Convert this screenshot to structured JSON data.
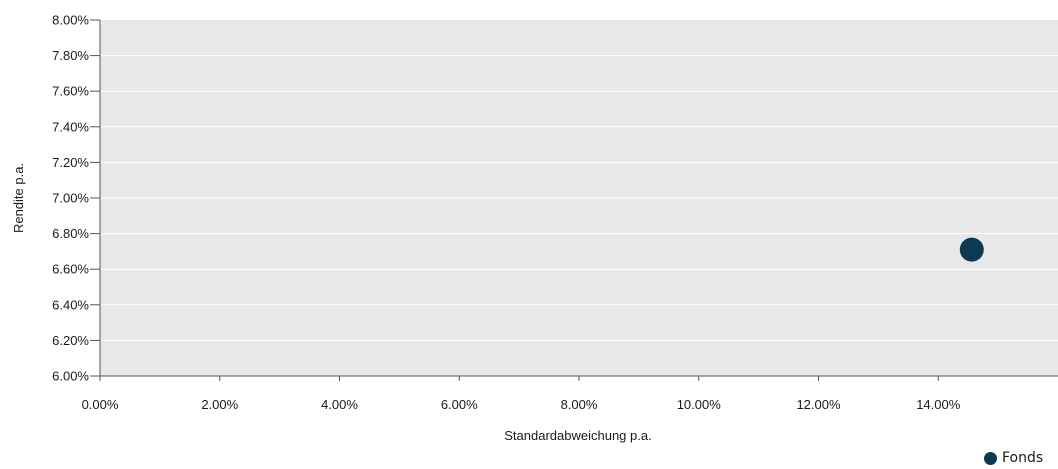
{
  "chart_data": {
    "type": "scatter",
    "title": "",
    "xlabel": "Standardabweichung p.a.",
    "ylabel": "Rendite p.a.",
    "xlim": [
      0,
      0.15
    ],
    "ylim": [
      0.06,
      0.08
    ],
    "x_ticks": [
      "0.00%",
      "2.00%",
      "4.00%",
      "6.00%",
      "8.00%",
      "10.00%",
      "12.00%",
      "14.00%"
    ],
    "y_ticks": [
      "8.00%",
      "7.80%",
      "7.60%",
      "7.40%",
      "7.20%",
      "7.00%",
      "6.80%",
      "6.60%",
      "6.40%",
      "6.20%",
      "6.00%"
    ],
    "grid": true,
    "legend_position": "bottom-right",
    "series": [
      {
        "name": "Fonds",
        "color": "#0d3a52",
        "points": [
          {
            "x": 0.1365,
            "y": 0.0671
          }
        ]
      }
    ],
    "colors": {
      "plot_background": "#e8e8e8",
      "gridline": "#ffffff",
      "axis": "#555555"
    }
  }
}
